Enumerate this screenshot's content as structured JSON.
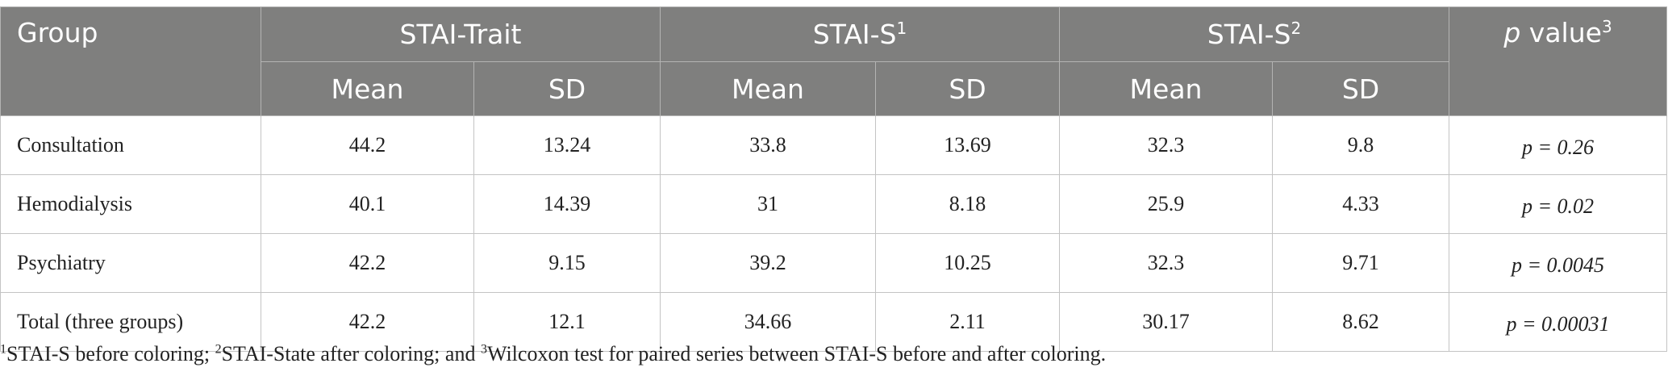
{
  "header": {
    "group": "Group",
    "stai_trait": "STAI-Trait",
    "stai_s1": "STAI-S",
    "stai_s1_sup": "1",
    "stai_s2": "STAI-S",
    "stai_s2_sup": "2",
    "p_label_italic": "p",
    "p_label_rest": " value",
    "p_sup": "3",
    "mean": "Mean",
    "sd": "SD"
  },
  "rows": [
    {
      "group": "Consultation",
      "trait_mean": "44.2",
      "trait_sd": "13.24",
      "s1_mean": "33.8",
      "s1_sd": "13.69",
      "s2_mean": "32.3",
      "s2_sd": "9.8",
      "p": "p = 0.26"
    },
    {
      "group": "Hemodialysis",
      "trait_mean": "40.1",
      "trait_sd": "14.39",
      "s1_mean": "31",
      "s1_sd": "8.18",
      "s2_mean": "25.9",
      "s2_sd": "4.33",
      "p": "p = 0.02"
    },
    {
      "group": "Psychiatry",
      "trait_mean": "42.2",
      "trait_sd": "9.15",
      "s1_mean": "39.2",
      "s1_sd": "10.25",
      "s2_mean": "32.3",
      "s2_sd": "9.71",
      "p": "p = 0.0045"
    },
    {
      "group": "Total (three groups)",
      "trait_mean": "42.2",
      "trait_sd": "12.1",
      "s1_mean": "34.66",
      "s1_sd": "2.11",
      "s2_mean": "30.17",
      "s2_sd": "8.62",
      "p": "p = 0.00031"
    }
  ],
  "footnote": {
    "sup1": "1",
    "text1": "STAI-S before coloring; ",
    "sup2": "2",
    "text2": "STAI-State after coloring; and ",
    "sup3": "3",
    "text3": "Wilcoxon test for paired series between STAI-S before and after coloring."
  }
}
